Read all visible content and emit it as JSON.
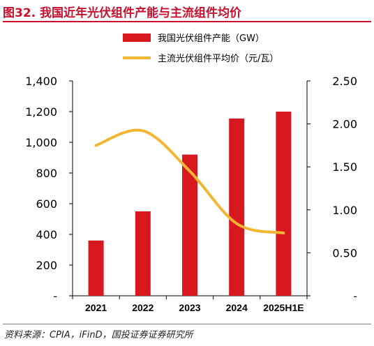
{
  "figure": {
    "title": "图32. 我国近年光伏组件产能与主流组件均价",
    "source": "资料来源：CPIA，iFinD，国投证券证券研究所",
    "accent_color": "#c8102e"
  },
  "chart_data": {
    "type": "bar+line",
    "categories": [
      "2021",
      "2022",
      "2023",
      "2024",
      "2025H1E"
    ],
    "series": [
      {
        "name": "我国光伏组件产能（GW）",
        "kind": "bar",
        "axis": "left",
        "color": "#d7191f",
        "values": [
          360,
          550,
          920,
          1155,
          1200
        ]
      },
      {
        "name": "主流光伏组件平均价（元/瓦）",
        "kind": "line",
        "axis": "right",
        "color": "#f2b632",
        "values": [
          1.75,
          1.92,
          1.45,
          0.84,
          0.73
        ]
      }
    ],
    "y_left": {
      "min": 0,
      "max": 1400,
      "ticks": [
        "-",
        "200",
        "400",
        "600",
        "800",
        "1,000",
        "1,200",
        "1,400"
      ],
      "tick_values": [
        0,
        200,
        400,
        600,
        800,
        1000,
        1200,
        1400
      ]
    },
    "y_right": {
      "min": 0,
      "max": 2.5,
      "ticks": [
        "-",
        "0.50",
        "1.00",
        "1.50",
        "2.00",
        "2.50"
      ],
      "tick_values": [
        0,
        0.5,
        1.0,
        1.5,
        2.0,
        2.5
      ]
    },
    "grid": false,
    "legend_position": "top"
  }
}
